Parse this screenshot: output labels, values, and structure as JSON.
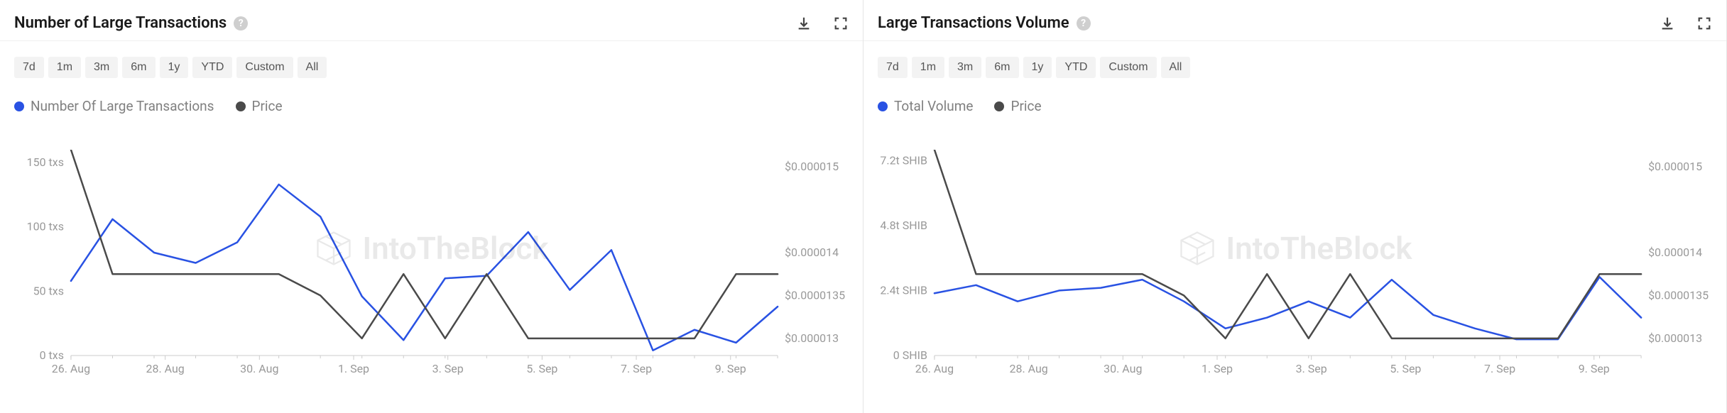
{
  "panels": [
    {
      "title": "Number of Large Transactions",
      "ranges": [
        "7d",
        "1m",
        "3m",
        "6m",
        "1y",
        "YTD",
        "Custom",
        "All"
      ],
      "legend": [
        {
          "label": "Number Of Large Transactions",
          "color": "#2952e3"
        },
        {
          "label": "Price",
          "color": "#4a4a4a"
        }
      ],
      "chart": {
        "type": "line",
        "x_categories": [
          "26. Aug",
          "28. Aug",
          "30. Aug",
          "1. Sep",
          "3. Sep",
          "5. Sep",
          "7. Sep",
          "9. Sep"
        ],
        "y_left": {
          "ticks": [
            0,
            50,
            100,
            150
          ],
          "tick_labels": [
            "0 txs",
            "50 txs",
            "100 txs",
            "150 txs"
          ],
          "min": 0,
          "max": 160
        },
        "y_right": {
          "ticks": [
            1.3e-05,
            1.35e-05,
            1.4e-05,
            1.5e-05
          ],
          "tick_labels": [
            "$0.000013",
            "$0.0000135",
            "$0.000014",
            "$0.000015"
          ],
          "min": 1.28e-05,
          "max": 1.52e-05
        },
        "series": [
          {
            "name": "txs",
            "axis": "left",
            "color": "#2952e3",
            "width": 2.5,
            "data": [
              58,
              106,
              80,
              72,
              88,
              133,
              108,
              46,
              12,
              60,
              62,
              96,
              51,
              82,
              4,
              20,
              10,
              38
            ]
          },
          {
            "name": "price",
            "axis": "right",
            "color": "#4a4a4a",
            "width": 2.5,
            "data": [
              1.52e-05,
              1.375e-05,
              1.375e-05,
              1.375e-05,
              1.375e-05,
              1.375e-05,
              1.35e-05,
              1.3e-05,
              1.375e-05,
              1.3e-05,
              1.375e-05,
              1.3e-05,
              1.3e-05,
              1.3e-05,
              1.3e-05,
              1.3e-05,
              1.375e-05,
              1.375e-05
            ]
          }
        ],
        "background_color": "#ffffff",
        "axis_color": "#cccccc",
        "label_color": "#999999"
      }
    },
    {
      "title": "Large Transactions Volume",
      "ranges": [
        "7d",
        "1m",
        "3m",
        "6m",
        "1y",
        "YTD",
        "Custom",
        "All"
      ],
      "legend": [
        {
          "label": "Total Volume",
          "color": "#2952e3"
        },
        {
          "label": "Price",
          "color": "#4a4a4a"
        }
      ],
      "chart": {
        "type": "line",
        "x_categories": [
          "26. Aug",
          "28. Aug",
          "30. Aug",
          "1. Sep",
          "3. Sep",
          "5. Sep",
          "7. Sep",
          "9. Sep"
        ],
        "y_left": {
          "ticks": [
            0,
            2.4,
            4.8,
            7.2
          ],
          "tick_labels": [
            "0 SHIB",
            "2.4t SHIB",
            "4.8t SHIB",
            "7.2t SHIB"
          ],
          "min": 0,
          "max": 7.6
        },
        "y_right": {
          "ticks": [
            1.3e-05,
            1.35e-05,
            1.4e-05,
            1.5e-05
          ],
          "tick_labels": [
            "$0.000013",
            "$0.0000135",
            "$0.000014",
            "$0.000015"
          ],
          "min": 1.28e-05,
          "max": 1.52e-05
        },
        "series": [
          {
            "name": "volume",
            "axis": "left",
            "color": "#2952e3",
            "width": 2.5,
            "data": [
              2.3,
              2.6,
              2.0,
              2.4,
              2.5,
              2.8,
              2.0,
              1.0,
              1.4,
              2.0,
              1.4,
              2.8,
              1.5,
              1.0,
              0.6,
              0.6,
              2.9,
              1.4
            ]
          },
          {
            "name": "price",
            "axis": "right",
            "color": "#4a4a4a",
            "width": 2.5,
            "data": [
              1.52e-05,
              1.375e-05,
              1.375e-05,
              1.375e-05,
              1.375e-05,
              1.375e-05,
              1.35e-05,
              1.3e-05,
              1.375e-05,
              1.3e-05,
              1.375e-05,
              1.3e-05,
              1.3e-05,
              1.3e-05,
              1.3e-05,
              1.3e-05,
              1.375e-05,
              1.375e-05
            ]
          }
        ],
        "background_color": "#ffffff",
        "axis_color": "#cccccc",
        "label_color": "#999999"
      }
    }
  ],
  "watermark": "IntoTheBlock",
  "help_glyph": "?"
}
